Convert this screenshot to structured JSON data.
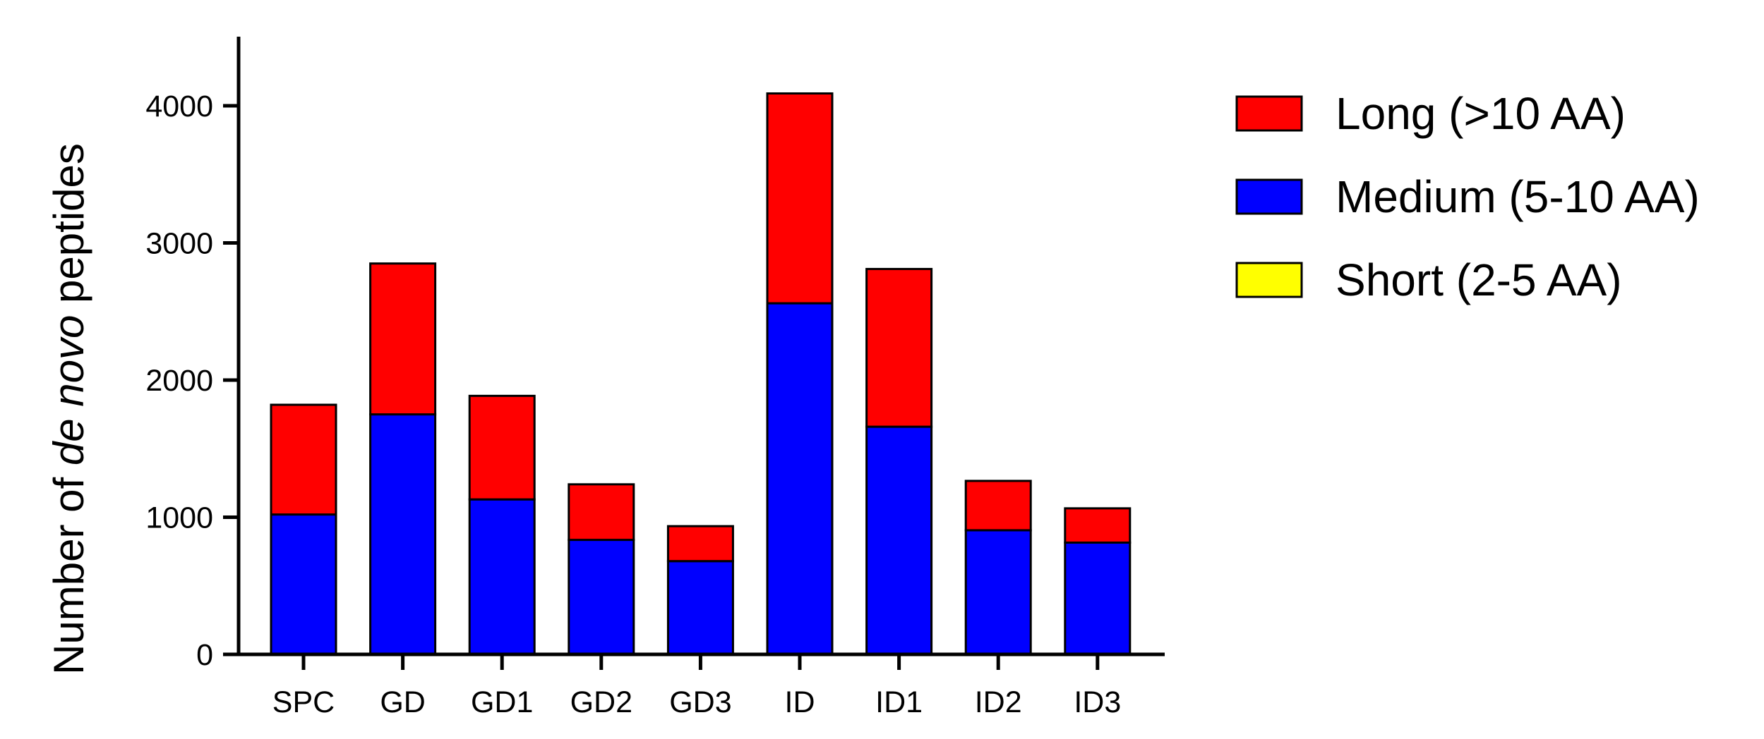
{
  "chart_data": {
    "type": "bar",
    "stacked": true,
    "categories": [
      "SPC",
      "GD",
      "GD1",
      "GD2",
      "GD3",
      "ID",
      "ID1",
      "ID2",
      "ID3"
    ],
    "series": [
      {
        "name": "Short (2-5 AA)",
        "color": "#ffff00",
        "values": [
          0,
          0,
          0,
          0,
          0,
          0,
          0,
          0,
          0
        ]
      },
      {
        "name": "Medium (5-10 AA)",
        "color": "#0000ff",
        "values": [
          1020,
          1750,
          1130,
          835,
          680,
          2560,
          1660,
          905,
          815
        ]
      },
      {
        "name": "Long (>10 AA)",
        "color": "#ff0000",
        "values": [
          800,
          1100,
          755,
          405,
          255,
          1530,
          1150,
          360,
          250
        ]
      }
    ],
    "legend_order": [
      "Long (>10 AA)",
      "Medium (5-10 AA)",
      "Short (2-5 AA)"
    ],
    "ylabel_parts": [
      {
        "text": "Number of ",
        "italic": false
      },
      {
        "text": "de novo",
        "italic": true
      },
      {
        "text": " peptides",
        "italic": false
      }
    ],
    "yticks": [
      0,
      1000,
      2000,
      3000,
      4000
    ],
    "ylim": [
      0,
      4500
    ],
    "legend_position": "right",
    "grid": false
  }
}
